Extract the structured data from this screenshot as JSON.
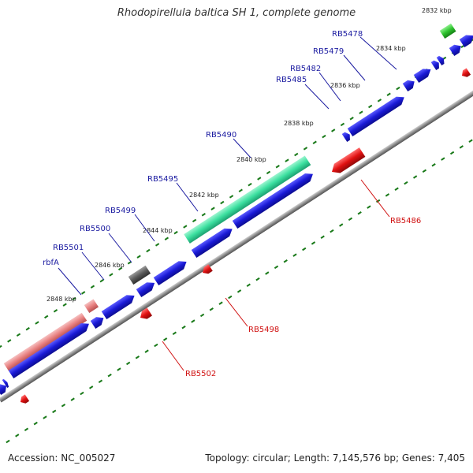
{
  "title": "Rhodopirellula baltica SH 1, complete genome",
  "footer": {
    "accession": "Accession: NC_005027",
    "summary": "Topology: circular; Length: 7,145,576 bp; Genes: 7,405"
  },
  "colors": {
    "forward_gene": "#1a1ad6",
    "reverse_gene": "#e01010",
    "forward_label": "#1a1aa0",
    "reverse_label": "#d01010",
    "backbone": "#8c8c8c",
    "tick": "#1a7a1a",
    "highlight_teal": "#3ce0a0",
    "highlight_green": "#2ec42e",
    "highlight_pink": "#e88080",
    "highlight_gray": "#5a5a5a"
  },
  "kbp_ticks": [
    "2832 kbp",
    "2834 kbp",
    "2836 kbp",
    "2838 kbp",
    "2840 kbp",
    "2842 kbp",
    "2844 kbp",
    "2846 kbp",
    "2848 kbp"
  ],
  "forward_labels": [
    "RB5478",
    "RB5479",
    "RB5482",
    "RB5485",
    "RB5490",
    "RB5495",
    "RB5499",
    "RB5500",
    "RB5501",
    "rbfA"
  ],
  "reverse_labels": [
    "RB5486",
    "RB5498",
    "RB5502"
  ]
}
